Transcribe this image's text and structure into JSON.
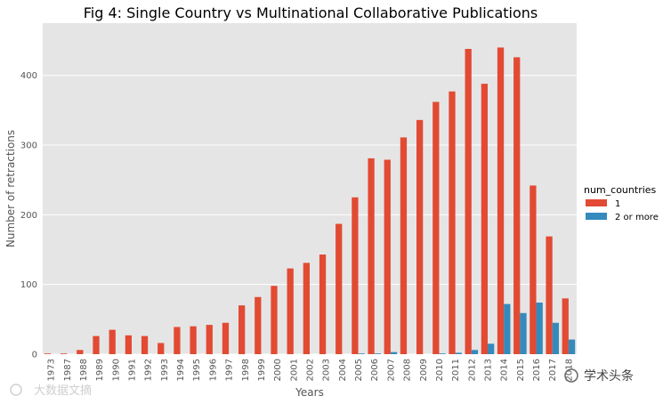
{
  "chart_data": {
    "type": "bar",
    "title": "Fig 4: Single Country vs Multinational Collaborative Publications",
    "xlabel": "Years",
    "ylabel": "Number of retractions",
    "ylim": [
      0,
      475
    ],
    "yticks": [
      0,
      100,
      200,
      300,
      400
    ],
    "grid": true,
    "legend": {
      "title": "num_countries",
      "placement": "right"
    },
    "categories": [
      "1973",
      "1987",
      "1988",
      "1989",
      "1990",
      "1991",
      "1992",
      "1993",
      "1994",
      "1995",
      "1996",
      "1997",
      "1998",
      "1999",
      "2000",
      "2001",
      "2002",
      "2003",
      "2004",
      "2005",
      "2006",
      "2007",
      "2008",
      "2009",
      "2010",
      "2011",
      "2012",
      "2013",
      "2014",
      "2015",
      "2016",
      "2017",
      "2018"
    ],
    "series": [
      {
        "name": "1",
        "color": "#E24A33",
        "values": [
          1,
          1,
          6,
          26,
          35,
          27,
          26,
          16,
          39,
          40,
          42,
          45,
          70,
          82,
          98,
          123,
          131,
          143,
          187,
          225,
          281,
          279,
          311,
          336,
          362,
          377,
          438,
          388,
          440,
          426,
          242,
          169,
          80
        ]
      },
      {
        "name": "2 or more",
        "color": "#348ABD",
        "values": [
          0,
          0,
          0,
          0,
          0,
          0,
          0,
          0,
          0,
          0,
          0,
          0,
          0,
          0,
          0,
          0,
          0,
          0,
          0,
          1,
          1,
          3,
          0,
          0,
          1,
          2,
          6,
          15,
          72,
          59,
          74,
          45,
          21
        ]
      }
    ]
  },
  "watermarks": {
    "left": "大数据文摘",
    "right": "学术头条"
  }
}
